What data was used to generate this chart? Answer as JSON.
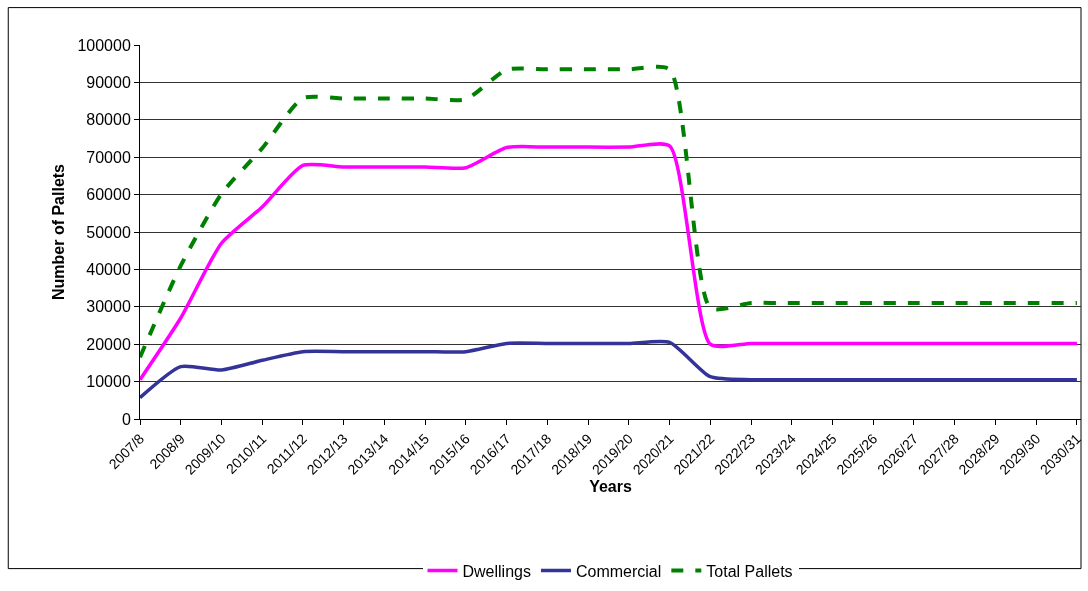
{
  "chart_data": {
    "type": "line",
    "xlabel": "Years",
    "ylabel": "Number of Pallets",
    "categories": [
      "2007/8",
      "2008/9",
      "2009/10",
      "2010/11",
      "2011/12",
      "2012/13",
      "2013/14",
      "2014/15",
      "2015/16",
      "2016/17",
      "2017/18",
      "2018/19",
      "2019/20",
      "2020/21",
      "2021/22",
      "2022/23",
      "2023/24",
      "2024/25",
      "2025/26",
      "2026/27",
      "2027/28",
      "2028/29",
      "2029/30",
      "2030/31"
    ],
    "series": [
      {
        "name": "Dwellings",
        "color": "#ff00ff",
        "line_style": "solid",
        "values": [
          10500,
          27000,
          47000,
          56700,
          67800,
          67400,
          67400,
          67400,
          67200,
          72600,
          72700,
          72700,
          72700,
          73000,
          20000,
          20200,
          20200,
          20200,
          20200,
          20200,
          20200,
          20200,
          20200,
          20200
        ]
      },
      {
        "name": "Commercial",
        "color": "#333399",
        "line_style": "solid",
        "values": [
          5700,
          14000,
          13100,
          15700,
          18000,
          18000,
          18000,
          18000,
          18000,
          20200,
          20200,
          20200,
          20200,
          20500,
          11300,
          10500,
          10500,
          10500,
          10500,
          10500,
          10500,
          10500,
          10500,
          10500
        ]
      },
      {
        "name": "Total Pallets",
        "color": "#008000",
        "line_style": "dashed",
        "values": [
          16500,
          41000,
          60200,
          72400,
          85800,
          85700,
          85700,
          85700,
          85500,
          93400,
          93500,
          93500,
          93500,
          93500,
          29700,
          31000,
          31000,
          31000,
          31000,
          31000,
          31000,
          31000,
          31000,
          31000
        ]
      }
    ],
    "ylim": [
      0,
      100000
    ],
    "yticks": [
      0,
      10000,
      20000,
      30000,
      40000,
      50000,
      60000,
      70000,
      80000,
      90000,
      100000
    ],
    "grid": "y",
    "legend": "bottom",
    "marker": "none"
  }
}
